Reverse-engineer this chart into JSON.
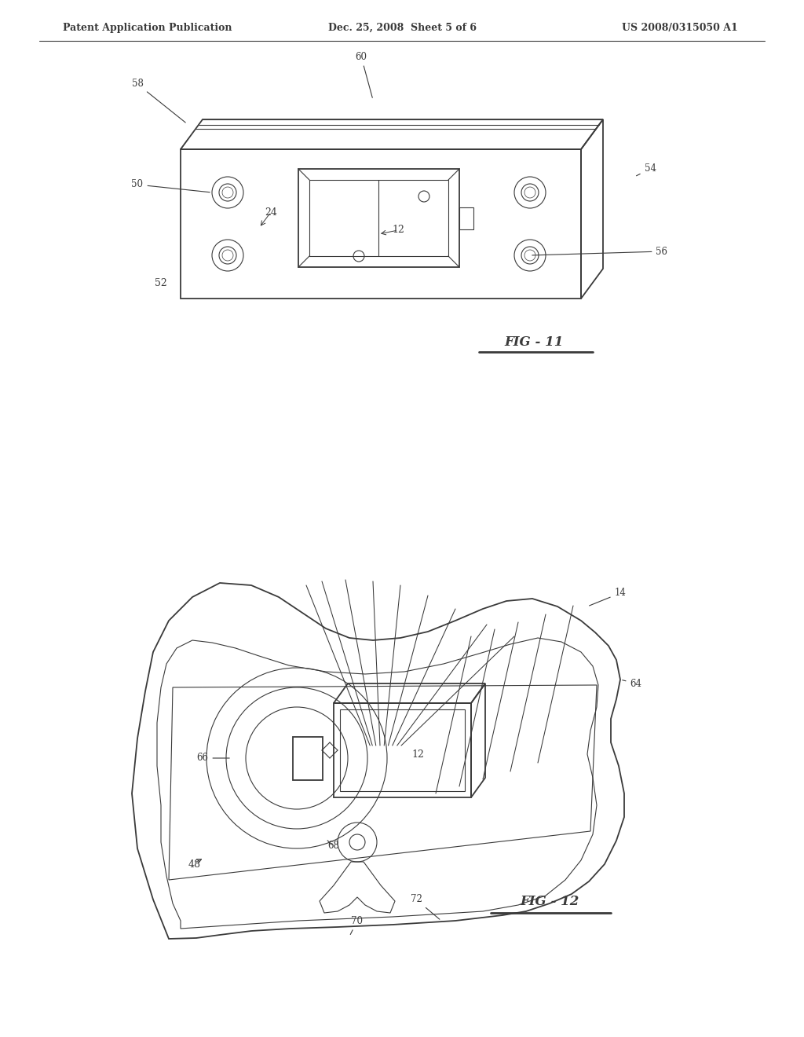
{
  "bg_color": "#ffffff",
  "line_color": "#3a3a3a",
  "header_left": "Patent Application Publication",
  "header_mid": "Dec. 25, 2008  Sheet 5 of 6",
  "header_right": "US 2008/0315050 A1",
  "fig11_label": "FIG - 11",
  "fig12_label": "FIG - 12"
}
